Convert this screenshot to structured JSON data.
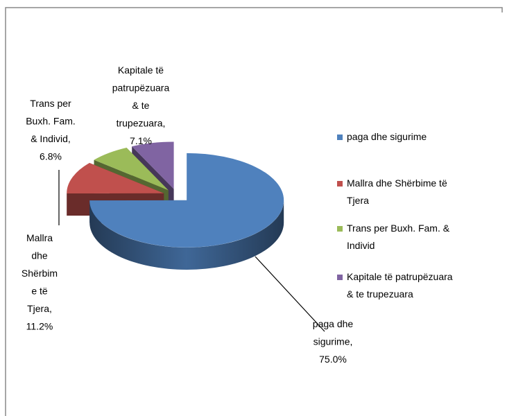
{
  "chart_data": {
    "type": "pie",
    "categories": [
      "paga dhe sigurime",
      "Mallra dhe Shërbime të Tjera",
      "Trans per Buxh. Fam. & Individ",
      "Kapitale të patrupëzuara & te trupezuara"
    ],
    "values": [
      75.0,
      11.2,
      6.8,
      7.1
    ],
    "value_labels": [
      "paga dhe sigurime, 75.0%",
      "Mallra dhe Shërbime të Tjera, 11.2%",
      "Trans per Buxh. Fam. & Individ, 6.8%",
      "Kapitale të patrupëzuara & te trupezuara, 7.1%"
    ],
    "colors": [
      "#4f81bd",
      "#c0504d",
      "#9bbb59",
      "#8064a2"
    ],
    "legend": "right"
  }
}
